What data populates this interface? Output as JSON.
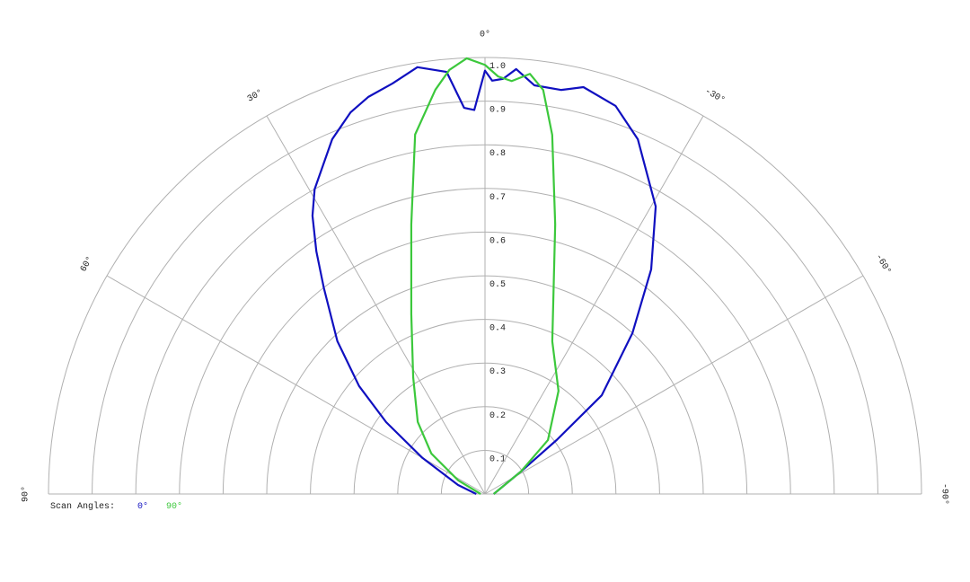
{
  "chart_data": {
    "type": "polar",
    "thetalim": [
      -90,
      90
    ],
    "thetaticks": [
      {
        "value": 90,
        "label": "90°"
      },
      {
        "value": 60,
        "label": "60°"
      },
      {
        "value": 30,
        "label": "30°"
      },
      {
        "value": 0,
        "label": "0°"
      },
      {
        "value": -30,
        "label": "-30°"
      },
      {
        "value": -60,
        "label": "-60°"
      },
      {
        "value": -90,
        "label": "-90°"
      }
    ],
    "rlim": [
      0,
      1
    ],
    "rticks": [
      0.1,
      0.2,
      0.3,
      0.4,
      0.5,
      0.6,
      0.7,
      0.8,
      0.9,
      {
        "value": 1,
        "label": "1.0"
      }
    ],
    "grid": true,
    "legend_title": "Scan Angles:",
    "series": [
      {
        "name": "0°",
        "color": "#1010c0",
        "theta": [
          90,
          71.6,
          60,
          54,
          49.4,
          44,
          38,
          34.8,
          31.8,
          29.2,
          23.3,
          19.4,
          16.4,
          12.7,
          9,
          5.2,
          3.1,
          1.6,
          0,
          -1,
          -2.5,
          -4.2,
          -6.9,
          -10.7,
          -13.6,
          -18.6,
          -23.3,
          -30.7,
          -36.5,
          -42.5,
          -49.8,
          -53,
          -58,
          -90
        ],
        "r": [
          0.02,
          0.065,
          0.166,
          0.28,
          0.38,
          0.487,
          0.6,
          0.677,
          0.75,
          0.8,
          0.885,
          0.927,
          0.948,
          0.964,
          0.99,
          0.971,
          0.886,
          0.88,
          0.97,
          0.947,
          0.952,
          0.976,
          0.943,
          0.942,
          0.959,
          0.938,
          0.885,
          0.766,
          0.64,
          0.5,
          0.35,
          0.206,
          0.097,
          0.02
        ]
      },
      {
        "name": "90°",
        "color": "#3cc83c",
        "theta": [
          90,
          63,
          53,
          43,
          31.6,
          22.3,
          15.3,
          11,
          7,
          4.8,
          2.4,
          0,
          -1.8,
          -3.7,
          -6.1,
          -8.2,
          -10.6,
          -14.6,
          -23.8,
          -35.5,
          -49.4,
          -58,
          -90
        ],
        "r": [
          0.01,
          0.069,
          0.154,
          0.226,
          0.314,
          0.445,
          0.64,
          0.839,
          0.933,
          0.975,
          0.999,
          0.983,
          0.957,
          0.948,
          0.968,
          0.935,
          0.837,
          0.638,
          0.382,
          0.29,
          0.19,
          0.097,
          0.02
        ]
      }
    ]
  }
}
